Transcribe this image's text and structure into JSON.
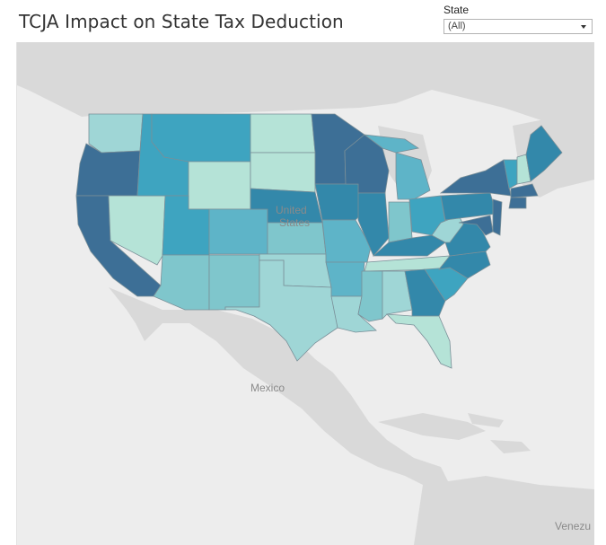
{
  "title": "TCJA Impact on State Tax Deduction",
  "filter": {
    "label": "State",
    "selected": "(All)"
  },
  "map": {
    "place_labels": {
      "usa_line1": "United",
      "usa_line2": "States",
      "mexico": "Mexico",
      "venezuela": "Venezu"
    },
    "colors": {
      "water": "#ededed",
      "land": "#d9d9d9",
      "level1": "#b5e3d7",
      "level2": "#9fd6d6",
      "level3": "#7fc6cc",
      "level4": "#5eb4c8",
      "level5": "#3ea4c0",
      "level6": "#3388aa",
      "level7": "#3d6f96"
    }
  }
}
